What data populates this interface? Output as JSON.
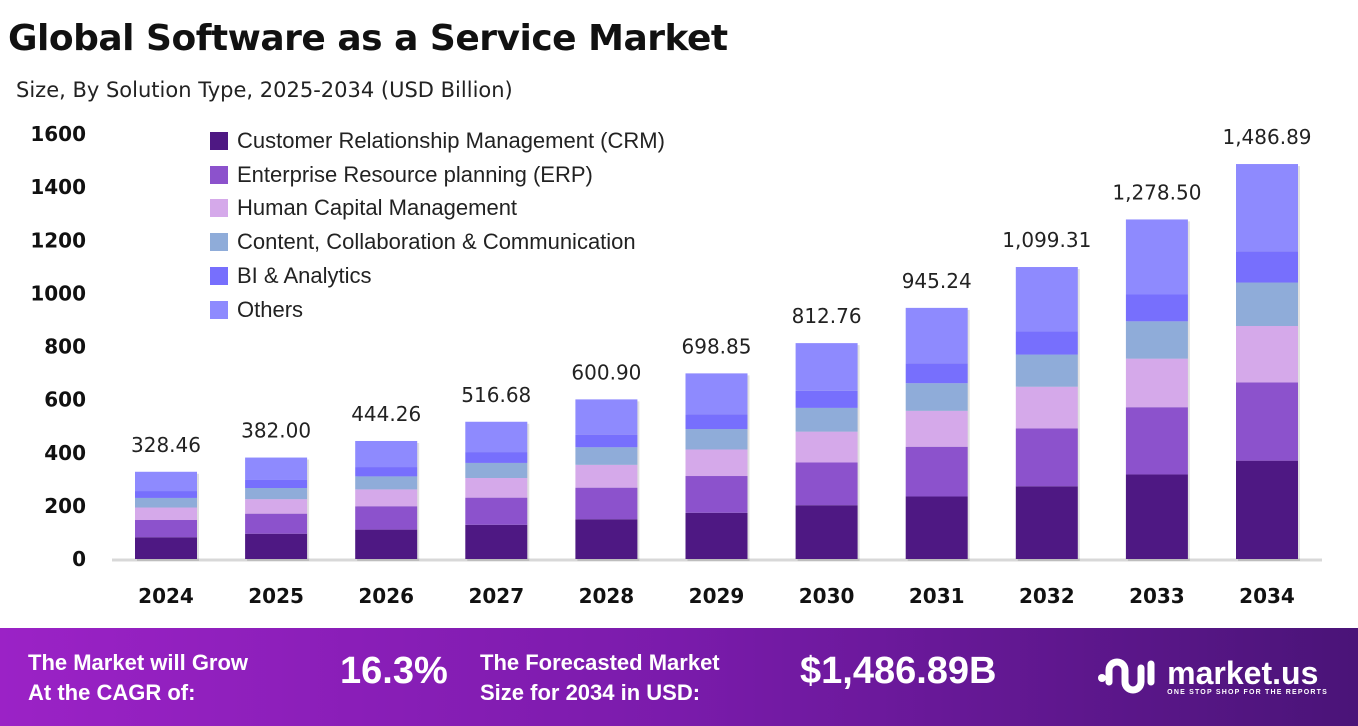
{
  "chart_data": {
    "type": "bar",
    "stacked": true,
    "title": "Global Software as a Service Market",
    "subtitle": "Size, By Solution Type, 2025-2034 (USD Billion)",
    "categories": [
      "2024",
      "2025",
      "2026",
      "2027",
      "2028",
      "2029",
      "2030",
      "2031",
      "2032",
      "2033",
      "2034"
    ],
    "totals": [
      "328.46",
      "382.00",
      "444.26",
      "516.68",
      "600.90",
      "698.85",
      "812.76",
      "945.24",
      "1,099.31",
      "1,278.50",
      "1,486.89"
    ],
    "total_values": [
      328.46,
      382.0,
      444.26,
      516.68,
      600.9,
      698.85,
      812.76,
      945.24,
      1099.31,
      1278.5,
      1486.89
    ],
    "ylim": [
      0,
      1600
    ],
    "yticks": [
      "0",
      "200",
      "400",
      "600",
      "800",
      "1000",
      "1200",
      "1400",
      "1600"
    ],
    "grid": false,
    "legend_position": "top-left",
    "series": [
      {
        "name": "Customer Relationship Management (CRM)",
        "color": "#4e1883",
        "values": [
          81.8,
          95.1,
          110.6,
          128.7,
          149.6,
          174.0,
          202.4,
          235.4,
          273.7,
          318.3,
          370.2
        ]
      },
      {
        "name": "Enterprise Resource planning (ERP)",
        "color": "#8c52cc",
        "values": [
          65.0,
          75.6,
          88.0,
          102.3,
          119.0,
          138.4,
          160.9,
          187.2,
          217.7,
          253.1,
          294.4
        ]
      },
      {
        "name": "Human Capital Management",
        "color": "#d5a9ea",
        "values": [
          47.0,
          54.6,
          63.5,
          73.9,
          85.9,
          99.9,
          116.2,
          135.2,
          157.2,
          182.8,
          212.6
        ]
      },
      {
        "name": "Content, Collaboration & Communication",
        "color": "#8facd9",
        "values": [
          36.1,
          42.0,
          48.9,
          56.8,
          66.1,
          76.9,
          89.4,
          104.0,
          120.9,
          140.6,
          163.6
        ]
      },
      {
        "name": "BI & Analytics",
        "color": "#776ffd",
        "values": [
          25.9,
          30.2,
          35.1,
          40.8,
          47.5,
          55.2,
          64.2,
          74.7,
          86.8,
          101.0,
          117.5
        ]
      },
      {
        "name": "Others",
        "color": "#8e8afe",
        "values": [
          72.6,
          84.4,
          98.2,
          114.2,
          132.8,
          154.4,
          179.6,
          208.9,
          242.9,
          282.5,
          328.6
        ]
      }
    ]
  },
  "footer": {
    "cagr_label_1": "The Market will Grow",
    "cagr_label_2": "At the CAGR of:",
    "cagr_value": "16.3%",
    "forecast_label_1": "The Forecasted Market",
    "forecast_label_2": "Size for 2034 in USD:",
    "forecast_value": "$1,486.89B",
    "logo_name": "market.us",
    "logo_tagline": "ONE STOP SHOP FOR THE REPORTS"
  }
}
